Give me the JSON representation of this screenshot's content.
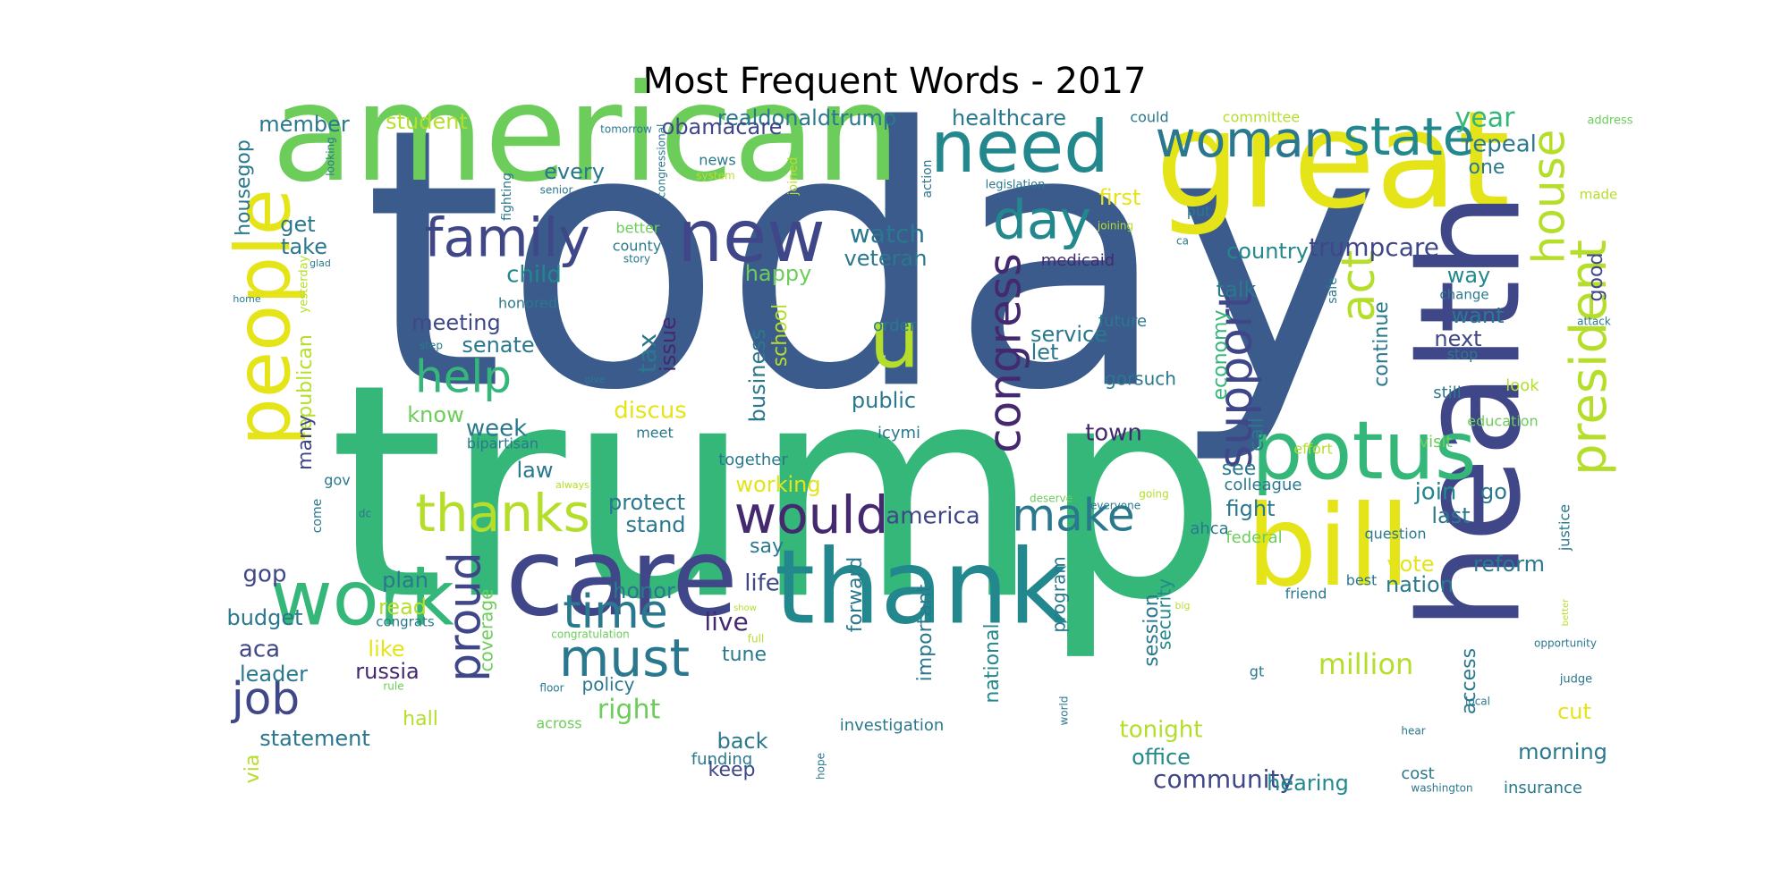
{
  "title": "Most Frequent Words - 2017",
  "colors": {
    "c1": "#3b5b8c",
    "c2": "#35b779",
    "c3": "#22888d",
    "c4": "#e4e419",
    "c5": "#3f4788",
    "c6": "#6ccd5a",
    "c7": "#44296f",
    "c8": "#b5de2b",
    "c9": "#2a788e"
  },
  "words": [
    {
      "text": "today",
      "color": "c1"
    },
    {
      "text": "trump",
      "color": "c2"
    },
    {
      "text": "american",
      "color": "c6"
    },
    {
      "text": "great",
      "color": "c4"
    },
    {
      "text": "health",
      "color": "c5"
    },
    {
      "text": "care",
      "color": "c5"
    },
    {
      "text": "thank",
      "color": "c3"
    },
    {
      "text": "bill",
      "color": "c4"
    },
    {
      "text": "potus",
      "color": "c2"
    },
    {
      "text": "people",
      "color": "c4"
    },
    {
      "text": "work",
      "color": "c2"
    },
    {
      "text": "need",
      "color": "c3"
    },
    {
      "text": "new",
      "color": "c5"
    },
    {
      "text": "u",
      "color": "c8"
    },
    {
      "text": "family",
      "color": "c5"
    },
    {
      "text": "day",
      "color": "c3"
    },
    {
      "text": "woman",
      "color": "c9"
    },
    {
      "text": "state",
      "color": "c3"
    },
    {
      "text": "congress",
      "color": "c7"
    },
    {
      "text": "president",
      "color": "c8"
    },
    {
      "text": "house",
      "color": "c8"
    },
    {
      "text": "act",
      "color": "c8"
    },
    {
      "text": "support",
      "color": "c5"
    },
    {
      "text": "thanks",
      "color": "c8"
    },
    {
      "text": "would",
      "color": "c7"
    },
    {
      "text": "make",
      "color": "c9"
    },
    {
      "text": "must",
      "color": "c9"
    },
    {
      "text": "time",
      "color": "c9"
    },
    {
      "text": "proud",
      "color": "c5"
    },
    {
      "text": "help",
      "color": "c2"
    },
    {
      "text": "job",
      "color": "c5"
    },
    {
      "text": "million",
      "color": "c8"
    },
    {
      "text": "trumpcare",
      "color": "c5"
    },
    {
      "text": "year",
      "color": "c2"
    },
    {
      "text": "repeal",
      "color": "c9"
    },
    {
      "text": "one",
      "color": "c9"
    },
    {
      "text": "country",
      "color": "c3"
    },
    {
      "text": "talk",
      "color": "c9"
    },
    {
      "text": "watch",
      "color": "c9"
    },
    {
      "text": "veteran",
      "color": "c9"
    },
    {
      "text": "realdonaldtrump",
      "color": "c9"
    },
    {
      "text": "healthcare",
      "color": "c9"
    },
    {
      "text": "obamacare",
      "color": "c5"
    },
    {
      "text": "student",
      "color": "c8"
    },
    {
      "text": "member",
      "color": "c9"
    },
    {
      "text": "every",
      "color": "c9"
    },
    {
      "text": "child",
      "color": "c3"
    },
    {
      "text": "happy",
      "color": "c6"
    },
    {
      "text": "tax",
      "color": "c9"
    },
    {
      "text": "issue",
      "color": "c7"
    },
    {
      "text": "discus",
      "color": "c4"
    },
    {
      "text": "meeting",
      "color": "c5"
    },
    {
      "text": "senate",
      "color": "c9"
    },
    {
      "text": "week",
      "color": "c9"
    },
    {
      "text": "know",
      "color": "c6"
    },
    {
      "text": "public",
      "color": "c9"
    },
    {
      "text": "business",
      "color": "c9"
    },
    {
      "text": "school",
      "color": "c8"
    },
    {
      "text": "service",
      "color": "c9"
    },
    {
      "text": "let",
      "color": "c9"
    },
    {
      "text": "town",
      "color": "c7"
    },
    {
      "text": "economy",
      "color": "c2"
    },
    {
      "text": "continue",
      "color": "c9"
    },
    {
      "text": "want",
      "color": "c9"
    },
    {
      "text": "next",
      "color": "c5"
    },
    {
      "text": "good",
      "color": "c5"
    },
    {
      "text": "way",
      "color": "c3"
    },
    {
      "text": "first",
      "color": "c4"
    },
    {
      "text": "take",
      "color": "c9"
    },
    {
      "text": "get",
      "color": "c9"
    },
    {
      "text": "housegop",
      "color": "c9"
    },
    {
      "text": "republican",
      "color": "c8"
    },
    {
      "text": "many",
      "color": "c5"
    },
    {
      "text": "law",
      "color": "c9"
    },
    {
      "text": "protect",
      "color": "c9"
    },
    {
      "text": "stand",
      "color": "c9"
    },
    {
      "text": "working",
      "color": "c4"
    },
    {
      "text": "america",
      "color": "c5"
    },
    {
      "text": "fight",
      "color": "c9"
    },
    {
      "text": "see",
      "color": "c9"
    },
    {
      "text": "call",
      "color": "c9"
    },
    {
      "text": "join",
      "color": "c3"
    },
    {
      "text": "last",
      "color": "c9"
    },
    {
      "text": "go",
      "color": "c9"
    },
    {
      "text": "gop",
      "color": "c5"
    },
    {
      "text": "plan",
      "color": "c9"
    },
    {
      "text": "read",
      "color": "c8"
    },
    {
      "text": "budget",
      "color": "c9"
    },
    {
      "text": "aca",
      "color": "c5"
    },
    {
      "text": "leader",
      "color": "c9"
    },
    {
      "text": "like",
      "color": "c4"
    },
    {
      "text": "russia",
      "color": "c7"
    },
    {
      "text": "coverage",
      "color": "c6"
    },
    {
      "text": "honor",
      "color": "c9"
    },
    {
      "text": "life",
      "color": "c5"
    },
    {
      "text": "live",
      "color": "c7"
    },
    {
      "text": "tune",
      "color": "c9"
    },
    {
      "text": "right",
      "color": "c6"
    },
    {
      "text": "policy",
      "color": "c9"
    },
    {
      "text": "back",
      "color": "c9"
    },
    {
      "text": "keep",
      "color": "c5"
    },
    {
      "text": "funding",
      "color": "c9"
    },
    {
      "text": "forward",
      "color": "c9"
    },
    {
      "text": "important",
      "color": "c9"
    },
    {
      "text": "national",
      "color": "c3"
    },
    {
      "text": "investigation",
      "color": "c9"
    },
    {
      "text": "program",
      "color": "c9"
    },
    {
      "text": "session",
      "color": "c9"
    },
    {
      "text": "security",
      "color": "c3"
    },
    {
      "text": "tonight",
      "color": "c8"
    },
    {
      "text": "office",
      "color": "c3"
    },
    {
      "text": "community",
      "color": "c5"
    },
    {
      "text": "hearing",
      "color": "c3"
    },
    {
      "text": "vote",
      "color": "c4"
    },
    {
      "text": "nation",
      "color": "c9"
    },
    {
      "text": "reform",
      "color": "c9"
    },
    {
      "text": "access",
      "color": "c9"
    },
    {
      "text": "cut",
      "color": "c4"
    },
    {
      "text": "morning",
      "color": "c9"
    },
    {
      "text": "insurance",
      "color": "c9"
    },
    {
      "text": "statement",
      "color": "c9"
    },
    {
      "text": "hall",
      "color": "c8"
    },
    {
      "text": "across",
      "color": "c6"
    },
    {
      "text": "via",
      "color": "c8"
    },
    {
      "text": "say",
      "color": "c9"
    },
    {
      "text": "together",
      "color": "c9"
    },
    {
      "text": "colleague",
      "color": "c9"
    },
    {
      "text": "ahca",
      "color": "c9"
    },
    {
      "text": "federal",
      "color": "c6"
    },
    {
      "text": "question",
      "color": "c9"
    },
    {
      "text": "friend",
      "color": "c9"
    },
    {
      "text": "best",
      "color": "c9"
    },
    {
      "text": "cost",
      "color": "c9"
    },
    {
      "text": "gt",
      "color": "c9"
    },
    {
      "text": "gorsuch",
      "color": "c9"
    },
    {
      "text": "future",
      "color": "c9"
    },
    {
      "text": "order",
      "color": "c9"
    },
    {
      "text": "medicaid",
      "color": "c7"
    },
    {
      "text": "icymi",
      "color": "c9"
    },
    {
      "text": "meet",
      "color": "c9"
    },
    {
      "text": "bipartisan",
      "color": "c9"
    },
    {
      "text": "honored",
      "color": "c9"
    },
    {
      "text": "county",
      "color": "c9"
    },
    {
      "text": "better",
      "color": "c6"
    },
    {
      "text": "story",
      "color": "c9"
    },
    {
      "text": "news",
      "color": "c9"
    },
    {
      "text": "joined",
      "color": "c8"
    },
    {
      "text": "fighting",
      "color": "c9"
    },
    {
      "text": "congressional",
      "color": "c9"
    },
    {
      "text": "tomorrow",
      "color": "c9"
    },
    {
      "text": "senior",
      "color": "c9"
    },
    {
      "text": "system",
      "color": "c8"
    },
    {
      "text": "action",
      "color": "c9"
    },
    {
      "text": "legislation",
      "color": "c9"
    },
    {
      "text": "joining",
      "color": "c8"
    },
    {
      "text": "could",
      "color": "c9"
    },
    {
      "text": "committee",
      "color": "c8"
    },
    {
      "text": "address",
      "color": "c6"
    },
    {
      "text": "made",
      "color": "c8"
    },
    {
      "text": "put",
      "color": "c9"
    },
    {
      "text": "ca",
      "color": "c9"
    },
    {
      "text": "change",
      "color": "c9"
    },
    {
      "text": "attack",
      "color": "c9"
    },
    {
      "text": "safe",
      "color": "c9"
    },
    {
      "text": "stop",
      "color": "c9"
    },
    {
      "text": "look",
      "color": "c8"
    },
    {
      "text": "still",
      "color": "c9"
    },
    {
      "text": "education",
      "color": "c6"
    },
    {
      "text": "visit",
      "color": "c6"
    },
    {
      "text": "effort",
      "color": "c8"
    },
    {
      "text": "justice",
      "color": "c9"
    },
    {
      "text": "better",
      "color": "c8"
    },
    {
      "text": "opportunity",
      "color": "c9"
    },
    {
      "text": "judge",
      "color": "c9"
    },
    {
      "text": "local",
      "color": "c9"
    },
    {
      "text": "hear",
      "color": "c9"
    },
    {
      "text": "washington",
      "color": "c9"
    },
    {
      "text": "going",
      "color": "c8"
    },
    {
      "text": "everyone",
      "color": "c9"
    },
    {
      "text": "deserve",
      "color": "c6"
    },
    {
      "text": "big",
      "color": "c8"
    },
    {
      "text": "world",
      "color": "c9"
    },
    {
      "text": "hope",
      "color": "c9"
    },
    {
      "text": "congratulation",
      "color": "c6"
    },
    {
      "text": "full",
      "color": "c8"
    },
    {
      "text": "show",
      "color": "c8"
    },
    {
      "text": "floor",
      "color": "c9"
    },
    {
      "text": "rule",
      "color": "c6"
    },
    {
      "text": "congrats",
      "color": "c9"
    },
    {
      "text": "always",
      "color": "c8"
    },
    {
      "text": "dc",
      "color": "c9"
    },
    {
      "text": "gov",
      "color": "c9"
    },
    {
      "text": "come",
      "color": "c9"
    },
    {
      "text": "give",
      "color": "c9"
    },
    {
      "text": "step",
      "color": "c9"
    },
    {
      "text": "home",
      "color": "c9"
    },
    {
      "text": "yesterday",
      "color": "c8"
    },
    {
      "text": "glad",
      "color": "c9"
    },
    {
      "text": "looking",
      "color": "c9"
    }
  ]
}
